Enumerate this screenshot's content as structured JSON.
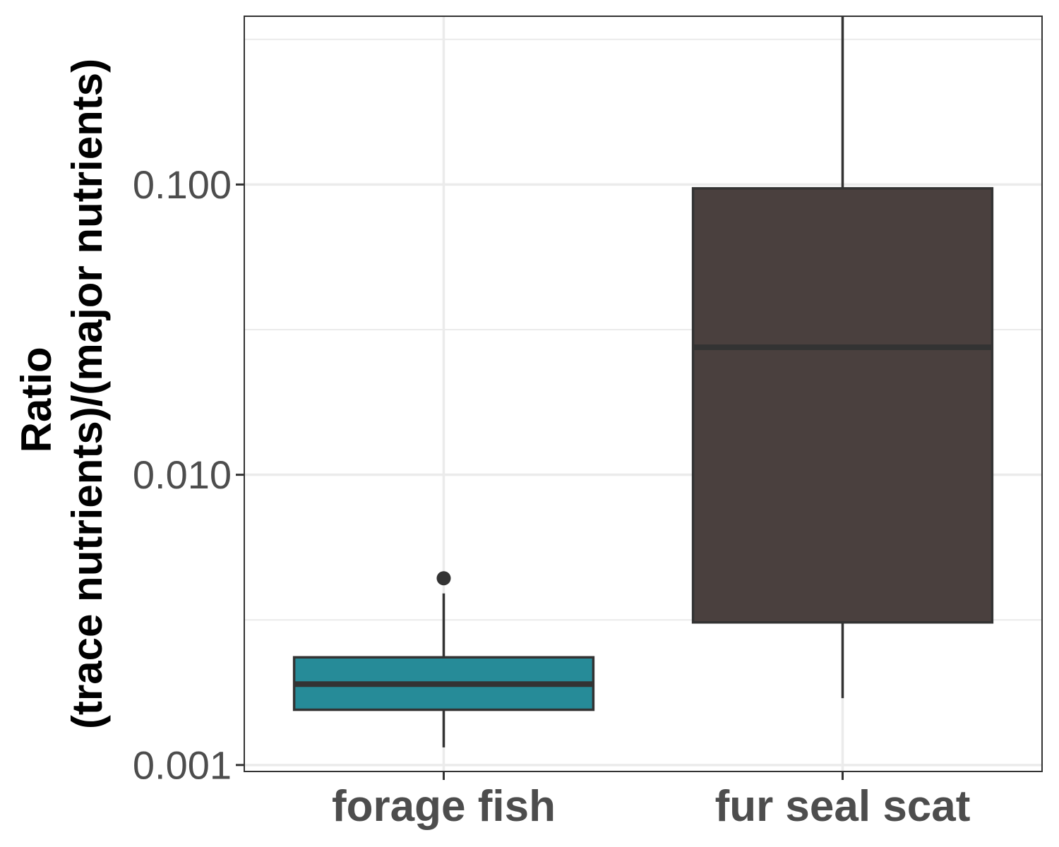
{
  "chart_data": {
    "type": "box",
    "title": "",
    "xlabel": "",
    "ylabel_lines": [
      "Ratio",
      "(trace nutrients)/(major nutrients)"
    ],
    "y_scale": "log10",
    "ylim": [
      0.00095,
      0.38
    ],
    "y_ticks": [
      0.001,
      0.01,
      0.1
    ],
    "y_tick_labels": [
      "0.001",
      "0.010",
      "0.100"
    ],
    "y_minor_gridlines": [
      0.0031623,
      0.031623,
      0.31623
    ],
    "grid": true,
    "legend": "none",
    "categories": [
      "forage fish",
      "fur seal scat"
    ],
    "boxes": [
      {
        "category": "forage fish",
        "color": "#268b98",
        "whisker_low": 0.00115,
        "q1": 0.00155,
        "median": 0.0019,
        "q3": 0.00235,
        "whisker_high": 0.0039,
        "outliers": [
          0.0044
        ]
      },
      {
        "category": "fur seal scat",
        "color": "#4a403e",
        "whisker_low": 0.0017,
        "q1": 0.0031,
        "median": 0.0275,
        "q3": 0.097,
        "whisker_high": 0.41,
        "outliers": []
      }
    ]
  }
}
